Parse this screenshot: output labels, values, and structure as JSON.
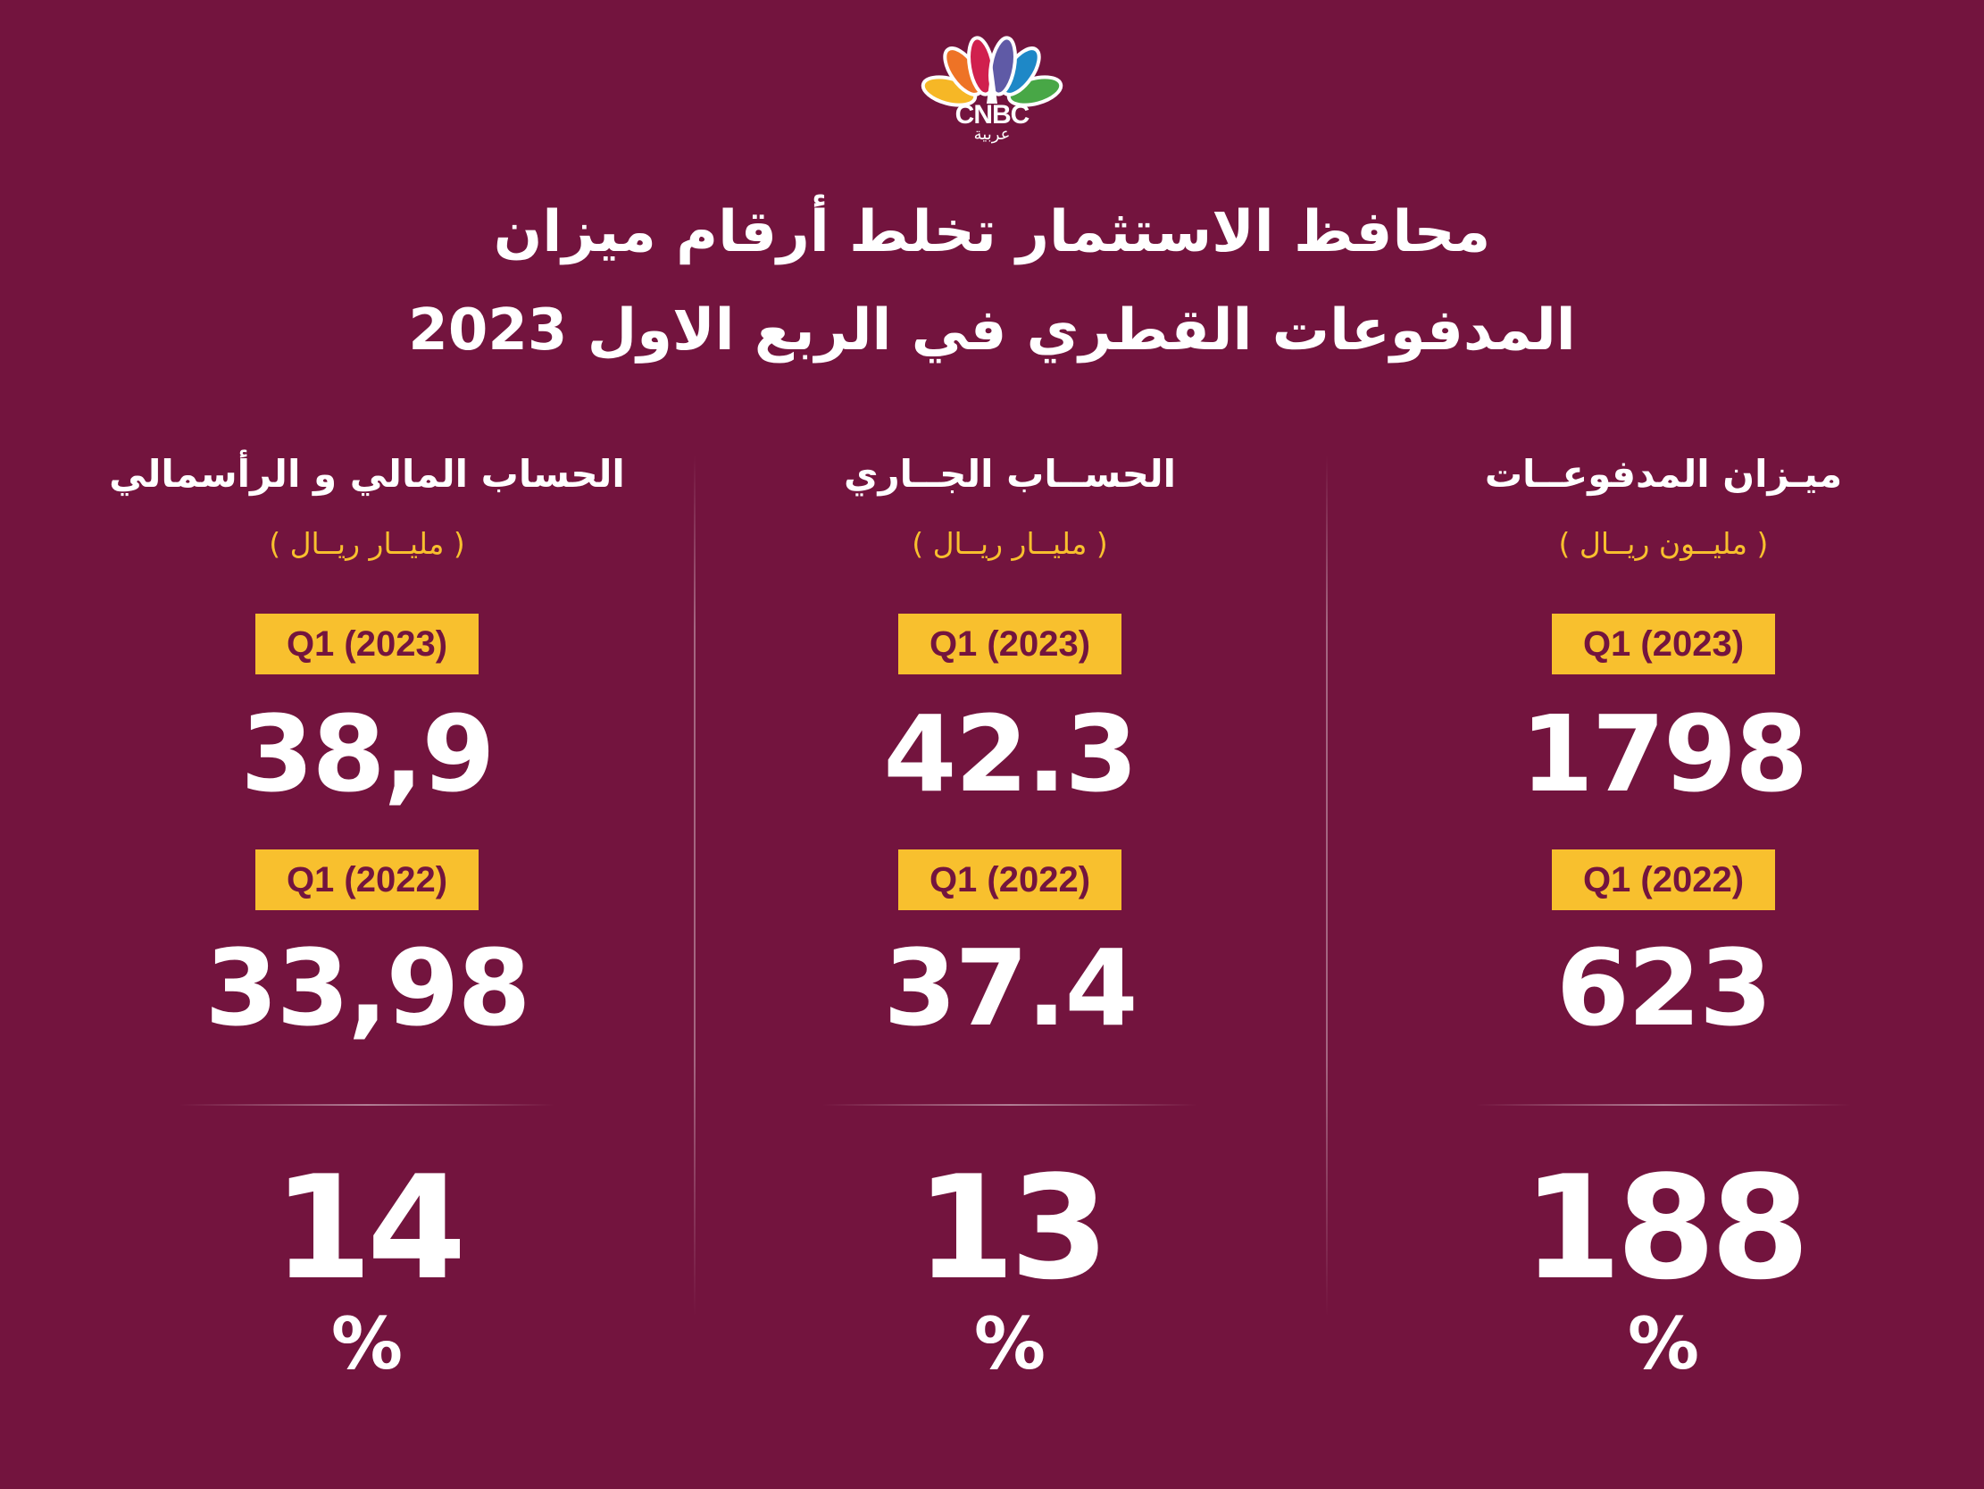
{
  "logo": {
    "brand": "CNBC",
    "subtitle": "عربية",
    "colors": [
      "#f6b726",
      "#ee7326",
      "#d0204e",
      "#5f5aa6",
      "#1e88c7",
      "#48a746"
    ]
  },
  "title": {
    "line1": "محافظ الاستثمار تخلط أرقام ميزان",
    "line2": "المدفوعات القطري في الربع الاول 2023"
  },
  "columns": [
    {
      "heading": "ميـزان المدفوعــات",
      "unit": "( مليــون ريــال )",
      "q1_2023_label": "Q1 (2023)",
      "q1_2023_value": "1798",
      "q1_2022_label": "Q1 (2022)",
      "q1_2022_value": "623",
      "change": "188",
      "percent_sign": "%"
    },
    {
      "heading": "الحســاب الجــاري",
      "unit": "( مليــار ريــال )",
      "q1_2023_label": "Q1 (2023)",
      "q1_2023_value": "42.3",
      "q1_2022_label": "Q1 (2022)",
      "q1_2022_value": "37.4",
      "change": "13",
      "percent_sign": "%"
    },
    {
      "heading": "الحساب المالي و الرأسمالي",
      "unit": "( مليــار ريــال )",
      "q1_2023_label": "Q1 (2023)",
      "q1_2023_value": "38,9",
      "q1_2022_label": "Q1 (2022)",
      "q1_2022_value": "33,98",
      "change": "14",
      "percent_sign": "%"
    }
  ],
  "colors": {
    "background": "#73143e",
    "accent": "#f8c02e",
    "text": "#ffffff"
  }
}
